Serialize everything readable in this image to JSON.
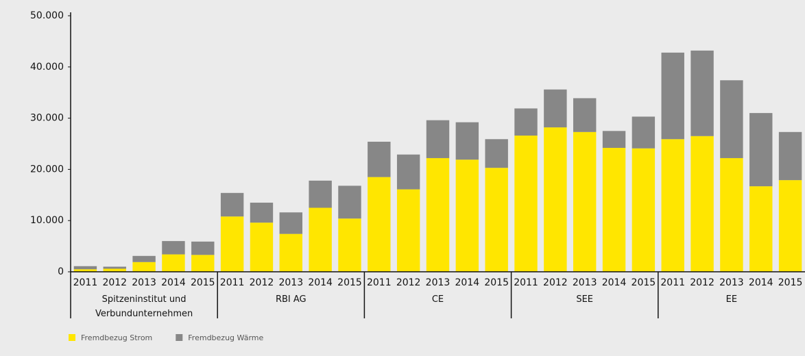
{
  "chart_data": {
    "type": "stacked-bar",
    "groups": [
      {
        "label": "Spitzeninstitut und Verbundunternehmen",
        "categories": [
          "2011",
          "2012",
          "2013",
          "2014",
          "2015"
        ]
      },
      {
        "label": "RBI AG",
        "categories": [
          "2011",
          "2012",
          "2013",
          "2014",
          "2015"
        ]
      },
      {
        "label": "CE",
        "categories": [
          "2011",
          "2012",
          "2013",
          "2014",
          "2015"
        ]
      },
      {
        "label": "SEE",
        "categories": [
          "2011",
          "2012",
          "2013",
          "2014",
          "2015"
        ]
      },
      {
        "label": "EE",
        "categories": [
          "2011",
          "2012",
          "2013",
          "2014",
          "2015"
        ]
      }
    ],
    "series": [
      {
        "name": "Fremdbezug Strom",
        "color": "#ffe600",
        "values": [
          500,
          600,
          1900,
          3400,
          3300,
          10800,
          9600,
          7400,
          12500,
          10400,
          18500,
          16100,
          22200,
          21900,
          20300,
          26600,
          28200,
          27300,
          24200,
          24100,
          25900,
          26500,
          22200,
          16700,
          17900
        ]
      },
      {
        "name": "Fremdbezug Wärme",
        "color": "#878787",
        "values": [
          600,
          400,
          1200,
          2600,
          2600,
          4600,
          3900,
          4200,
          5300,
          6400,
          6900,
          6800,
          7400,
          7300,
          5600,
          5300,
          7400,
          6600,
          3300,
          6200,
          16900,
          16700,
          15200,
          14300,
          9400
        ]
      }
    ],
    "ylim": [
      0,
      50000
    ],
    "yticks": [
      0,
      {
        "value": 10000,
        "label": "10.000"
      },
      {
        "value": 20000,
        "label": "20.000"
      },
      {
        "value": 30000,
        "label": "30.000"
      },
      {
        "value": 40000,
        "label": "40.000"
      },
      {
        "value": 50000,
        "label": "50.000"
      }
    ],
    "legend": "bottom-left"
  }
}
